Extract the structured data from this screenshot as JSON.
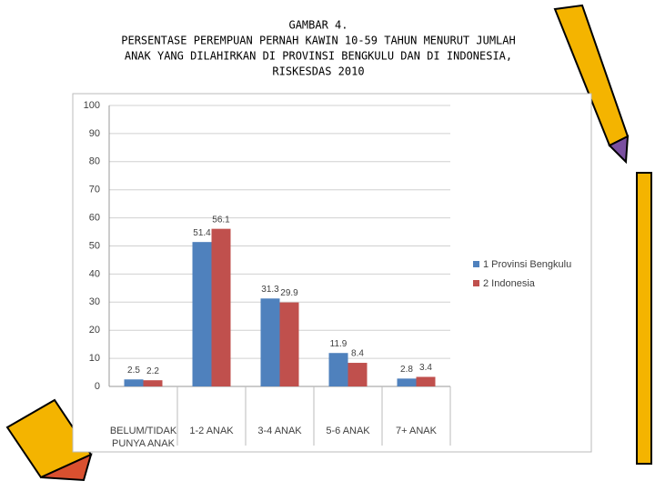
{
  "chart_data": {
    "type": "bar",
    "title": [
      "GAMBAR 4.",
      "PERSENTASE PEREMPUAN PERNAH KAWIN 10-59 TAHUN MENURUT JUMLAH",
      "ANAK YANG DILAHIRKAN DI PROVINSI BENGKULU DAN DI INDONESIA,",
      "RISKESDAS 2010"
    ],
    "categories": [
      "BELUM/TIDAK PUNYA ANAK",
      "1-2 ANAK",
      "3-4 ANAK",
      "5-6 ANAK",
      "7+ ANAK"
    ],
    "series": [
      {
        "name": "1 Provinsi Bengkulu",
        "color": "#4f81bd",
        "values": [
          2.5,
          51.4,
          31.3,
          11.9,
          2.8
        ]
      },
      {
        "name": "2 Indonesia",
        "color": "#c0504d",
        "values": [
          2.2,
          56.1,
          29.9,
          8.4,
          3.4
        ]
      }
    ],
    "ylim": [
      0,
      100
    ],
    "yticks": [
      0,
      10,
      20,
      30,
      40,
      50,
      60,
      70,
      80,
      90,
      100
    ],
    "grid": true,
    "legend": "right"
  }
}
